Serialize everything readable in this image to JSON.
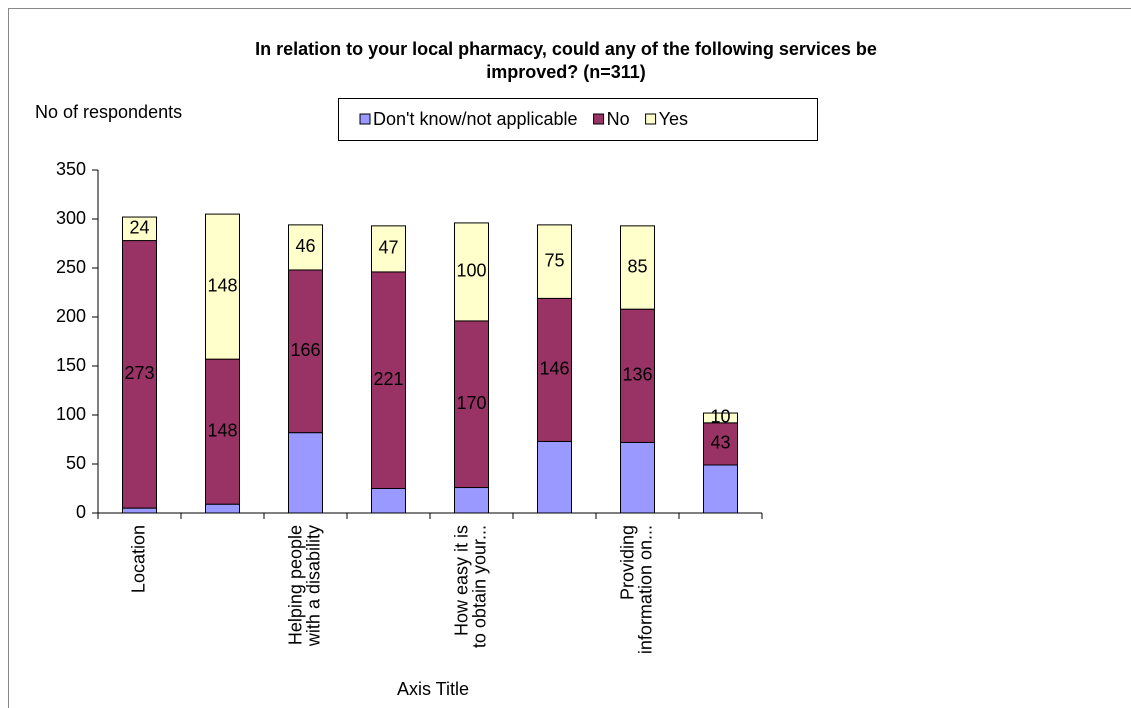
{
  "chart_data": {
    "type": "stacked_bar",
    "title": "In relation to your local pharmacy, could any of the following services be\nimproved? (n=311)",
    "y_label": "No of respondents",
    "x_label": "Axis Title",
    "categories": [
      "Location",
      null,
      "Helping people\nwith a disability",
      null,
      "How easy it is\nto obtain your...",
      null,
      "Providing\ninformation on...",
      null
    ],
    "series": [
      {
        "name": "Don't know/not applicable",
        "color": "#9999ff",
        "show_labels": false,
        "values": [
          5,
          9,
          82,
          25,
          26,
          73,
          72,
          49
        ]
      },
      {
        "name": "No",
        "color": "#993366",
        "show_labels": true,
        "values": [
          273,
          148,
          166,
          221,
          170,
          146,
          136,
          43
        ]
      },
      {
        "name": "Yes",
        "color": "#ffffcc",
        "show_labels": true,
        "values": [
          24,
          148,
          46,
          47,
          100,
          75,
          85,
          10
        ]
      }
    ],
    "ylim": [
      0,
      350
    ],
    "yticks": [
      0,
      50,
      100,
      150,
      200,
      250,
      300,
      350
    ],
    "legend": "top"
  }
}
